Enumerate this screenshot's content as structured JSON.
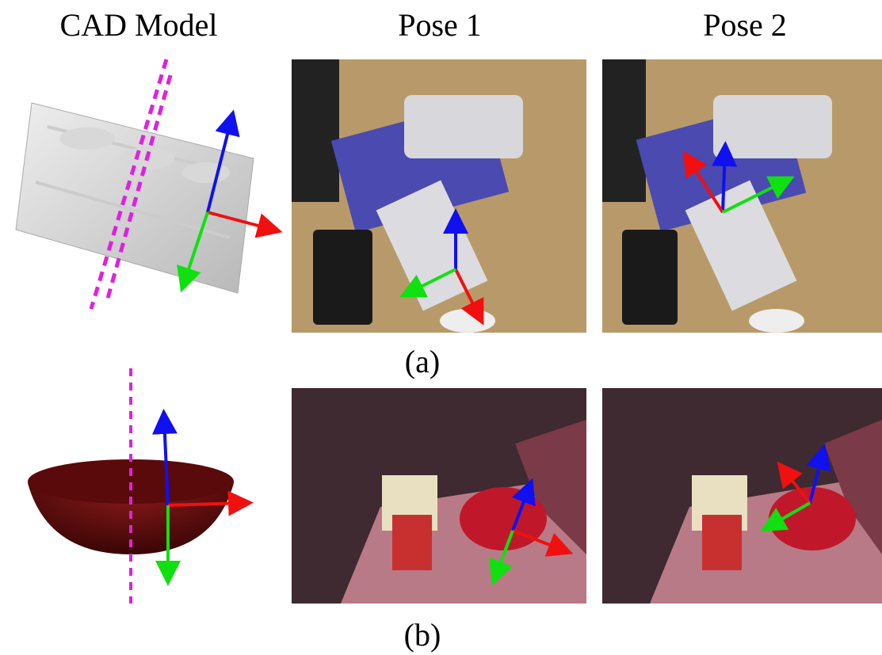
{
  "header": {
    "columns": [
      "CAD Model",
      "Pose 1",
      "Pose 2"
    ]
  },
  "rows": [
    {
      "caption": "(a)"
    },
    {
      "caption": "(b)"
    }
  ]
}
